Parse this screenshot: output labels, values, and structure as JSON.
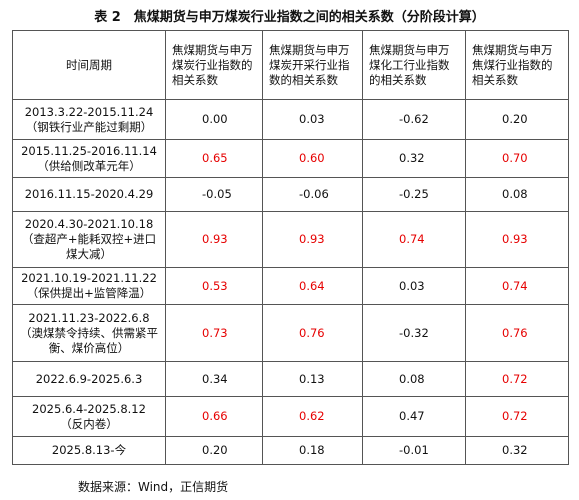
{
  "title": "表 2　焦煤期货与申万煤炭行业指数之间的相关系数（分阶段计算）",
  "highlight_color": "#e60000",
  "table": {
    "headers": [
      "时间周期",
      "焦煤期货与申万煤炭行业指数的相关系数",
      "焦煤期货与申万煤炭开采行业指数的相关系数",
      "焦煤期货与申万煤化工行业指数的相关系数",
      "焦煤期货与申万焦煤行业指数的相关系数"
    ],
    "rows": [
      {
        "period": "2013.3.22-2015.11.24",
        "note": "（钢铁行业产能过剩期）",
        "values": [
          "0.00",
          "0.03",
          "-0.62",
          "0.20"
        ],
        "highlight": [
          false,
          false,
          false,
          false
        ]
      },
      {
        "period": "2015.11.25-2016.11.14",
        "note": "（供给侧改革元年）",
        "values": [
          "0.65",
          "0.60",
          "0.32",
          "0.70"
        ],
        "highlight": [
          true,
          true,
          false,
          true
        ]
      },
      {
        "period": "2016.11.15-2020.4.29",
        "values": [
          "-0.05",
          "-0.06",
          "-0.25",
          "0.08"
        ],
        "highlight": [
          false,
          false,
          false,
          false
        ]
      },
      {
        "period": "2020.4.30-2021.10.18",
        "note": "（查超产+能耗双控+进口煤大减）",
        "values": [
          "0.93",
          "0.93",
          "0.74",
          "0.93"
        ],
        "highlight": [
          true,
          true,
          true,
          true
        ]
      },
      {
        "period": "2021.10.19-2021.11.22",
        "note": "（保供提出+监管降温）",
        "values": [
          "0.53",
          "0.64",
          "0.03",
          "0.74"
        ],
        "highlight": [
          true,
          true,
          false,
          true
        ]
      },
      {
        "period": "2021.11.23-2022.6.8",
        "note": "（澳煤禁令持续、供需紧平衡、煤价高位）",
        "values": [
          "0.73",
          "0.76",
          "-0.32",
          "0.76"
        ],
        "highlight": [
          true,
          true,
          false,
          true
        ]
      },
      {
        "period": "2022.6.9-2025.6.3",
        "values": [
          "0.34",
          "0.13",
          "0.08",
          "0.72"
        ],
        "highlight": [
          false,
          false,
          false,
          true
        ]
      },
      {
        "period": "2025.6.4-2025.8.12",
        "note": "（反内卷）",
        "values": [
          "0.66",
          "0.62",
          "0.47",
          "0.72"
        ],
        "highlight": [
          true,
          true,
          false,
          true
        ]
      },
      {
        "period": "2025.8.13-今",
        "values": [
          "0.20",
          "0.18",
          "-0.01",
          "0.32"
        ],
        "highlight": [
          false,
          false,
          false,
          false
        ]
      }
    ]
  },
  "source": "数据来源：Wind，正信期货"
}
